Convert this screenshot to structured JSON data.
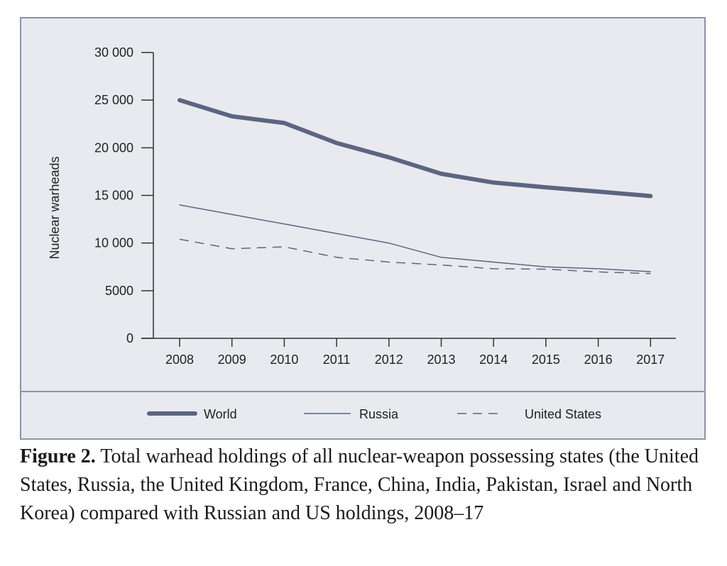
{
  "colors": {
    "series": "#5c6580",
    "axis": "#333333",
    "panel": "#e9eaef",
    "border": "#8b93ab"
  },
  "caption": {
    "label": "Figure 2.",
    "text": "Total warhead holdings of all nuclear-weapon possessing states (the United States, Russia, the United Kingdom, France, China, India, Pakistan, Israel and North Korea) compared with Russian and US holdings, 2008–17"
  },
  "chart_data": {
    "type": "line",
    "title": "",
    "xlabel": "",
    "ylabel": "Nuclear warheads",
    "x": [
      "2008",
      "2009",
      "2010",
      "2011",
      "2012",
      "2013",
      "2014",
      "2015",
      "2016",
      "2017"
    ],
    "ylim": [
      0,
      30000
    ],
    "yticks": [
      0,
      5000,
      10000,
      15000,
      20000,
      25000,
      30000
    ],
    "ytick_labels": [
      "0",
      "5000",
      "10 000",
      "15 000",
      "20 000",
      "25 000",
      "30 000"
    ],
    "grid": false,
    "legend_position": "bottom",
    "series": [
      {
        "name": "World",
        "style": "thick",
        "values": [
          25000,
          23300,
          22600,
          20500,
          19000,
          17270,
          16350,
          15850,
          15400,
          14935
        ]
      },
      {
        "name": "Russia",
        "style": "thin",
        "values": [
          14000,
          13000,
          12000,
          11000,
          10000,
          8500,
          8000,
          7500,
          7300,
          7000
        ]
      },
      {
        "name": "United States",
        "style": "dashed",
        "values": [
          10400,
          9400,
          9600,
          8500,
          8000,
          7700,
          7300,
          7260,
          6970,
          6800
        ]
      }
    ]
  }
}
